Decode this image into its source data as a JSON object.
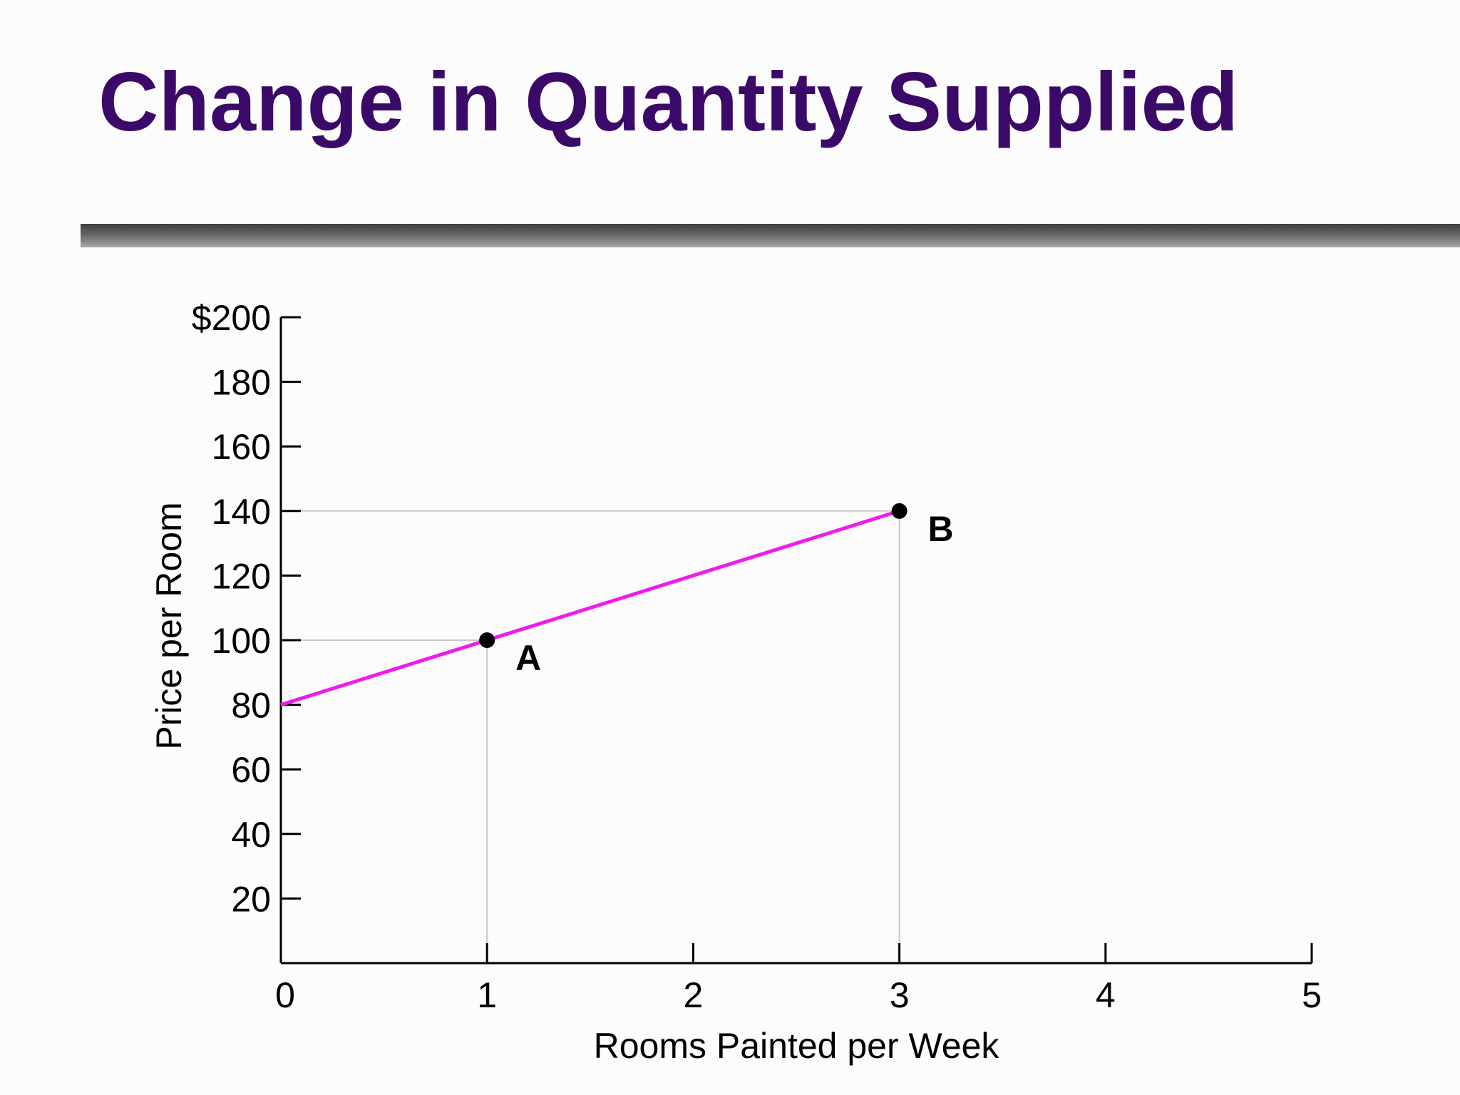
{
  "slide": {
    "title": "Change in Quantity Supplied",
    "title_color": "#3b0a68"
  },
  "chart_data": {
    "type": "line",
    "title": "",
    "xlabel": "Rooms Painted per Week",
    "ylabel": "Price per Room",
    "xlim": [
      0,
      5
    ],
    "ylim": [
      0,
      200
    ],
    "x_ticks": [
      0,
      1,
      2,
      3,
      4,
      5
    ],
    "x_tick_labels": [
      "0",
      "1",
      "2",
      "3",
      "4",
      "5"
    ],
    "y_ticks": [
      20,
      40,
      60,
      80,
      100,
      120,
      140,
      160,
      180,
      200
    ],
    "y_tick_labels": [
      "20",
      "40",
      "60",
      "80",
      "100",
      "120",
      "140",
      "160",
      "180",
      "$200"
    ],
    "grid": false,
    "series": [
      {
        "color": "#ee1bee",
        "x": [
          0,
          1,
          3
        ],
        "y": [
          80,
          100,
          140
        ]
      }
    ],
    "points": [
      {
        "label": "A",
        "x": 1,
        "y": 100
      },
      {
        "label": "B",
        "x": 3,
        "y": 140
      }
    ],
    "reference_lines_color": "#c8c8c8",
    "axis_color": "#000000"
  }
}
